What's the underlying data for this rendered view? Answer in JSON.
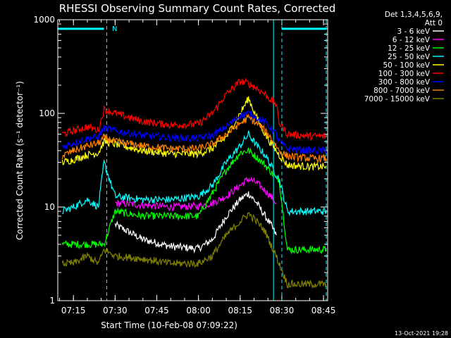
{
  "chart_data": {
    "type": "line",
    "title": "RHESSI Observing Summary Count Rates, Corrected",
    "xlabel": "Start Time (10-Feb-08 07:09:22)",
    "ylabel": "Corrected Count Rate (s⁻¹ detector⁻¹)",
    "y_scale": "log",
    "ylim": [
      1,
      1000
    ],
    "y_ticks": [
      {
        "label": "1",
        "value": 1
      },
      {
        "label": "10",
        "value": 10
      },
      {
        "label": "100",
        "value": 100
      },
      {
        "label": "1000",
        "value": 1000
      }
    ],
    "xlim": [
      "07:09:22",
      "08:46:30"
    ],
    "x_ticks": [
      {
        "label": "07:15",
        "value": "07:15"
      },
      {
        "label": "07:30",
        "value": "07:30"
      },
      {
        "label": "07:45",
        "value": "07:45"
      },
      {
        "label": "08:00",
        "value": "08:00"
      },
      {
        "label": "08:15",
        "value": "08:15"
      },
      {
        "label": "08:30",
        "value": "08:30"
      },
      {
        "label": "08:45",
        "value": "08:45"
      }
    ],
    "legend_header": [
      "Det 1,3,4,5,6,9,",
      "Att 0"
    ],
    "legend_position": "right",
    "annotation": {
      "label": "N",
      "time": "07:27"
    },
    "timestamp": "13-Oct-2021 19:28",
    "night_markers": [
      {
        "time": "07:27",
        "color": "#00ffff",
        "style": "dashed"
      },
      {
        "time": "08:27",
        "color": "#00ffff",
        "style": "solid"
      },
      {
        "time": "08:30",
        "color": "#00ffff",
        "style": "dashed"
      },
      {
        "time": "08:46",
        "color": "#00ffff",
        "style": "dashed"
      }
    ],
    "flag_bars": [
      {
        "start": "07:09:22",
        "end": "07:26",
        "value": 800,
        "color": "#00ffff"
      },
      {
        "start": "08:30",
        "end": "08:46",
        "value": 800,
        "color": "#00ffff"
      }
    ],
    "x": [
      "07:11",
      "07:15",
      "07:20",
      "07:24",
      "07:26",
      "07:30",
      "07:40",
      "07:50",
      "08:00",
      "08:05",
      "08:10",
      "08:15",
      "08:18",
      "08:21",
      "08:24",
      "08:26",
      "08:28",
      "08:29",
      "08:32",
      "08:40",
      "08:46"
    ],
    "series": [
      {
        "name": "3 - 6 keV",
        "color": "#ffffff",
        "values": [
          null,
          null,
          null,
          null,
          null,
          6.5,
          4.5,
          3.8,
          3.6,
          4.5,
          8,
          12,
          14,
          11,
          8,
          6.5,
          5,
          null,
          null,
          null,
          null
        ]
      },
      {
        "name": "6 - 12 keV",
        "color": "#ff00ff",
        "values": [
          null,
          null,
          null,
          null,
          null,
          11,
          10.5,
          10,
          10.2,
          11,
          13,
          17,
          20,
          18,
          15,
          13,
          11,
          null,
          null,
          null,
          null
        ]
      },
      {
        "name": "12 - 25 keV",
        "color": "#00ff00",
        "values": [
          4,
          4,
          4,
          4,
          4,
          9,
          8,
          8,
          8,
          14,
          25,
          38,
          40,
          34,
          28,
          24,
          20,
          20,
          3.5,
          3.5,
          3.5
        ]
      },
      {
        "name": "25 - 50 keV",
        "color": "#00ffff",
        "values": [
          9,
          10,
          12,
          10,
          30,
          13,
          12,
          12,
          13,
          17,
          30,
          45,
          60,
          45,
          36,
          28,
          22,
          20,
          9,
          9,
          9
        ]
      },
      {
        "name": "50 - 100 keV",
        "color": "#ffff00",
        "values": [
          30,
          32,
          36,
          38,
          50,
          47,
          40,
          37,
          37,
          42,
          56,
          100,
          145,
          90,
          60,
          48,
          40,
          36,
          28,
          27,
          27
        ]
      },
      {
        "name": "100 - 300 keV",
        "color": "#ff0000",
        "values": [
          60,
          65,
          72,
          66,
          110,
          100,
          82,
          75,
          77,
          100,
          160,
          220,
          210,
          185,
          160,
          140,
          125,
          80,
          60,
          57,
          57
        ]
      },
      {
        "name": "300 - 800 keV",
        "color": "#0000ff",
        "values": [
          44,
          48,
          54,
          56,
          70,
          65,
          58,
          55,
          54,
          58,
          72,
          95,
          100,
          90,
          80,
          70,
          60,
          50,
          42,
          40,
          40
        ]
      },
      {
        "name": "800 - 7000 keV",
        "color": "#ff8000",
        "values": [
          35,
          40,
          45,
          48,
          55,
          50,
          45,
          42,
          42,
          47,
          60,
          78,
          90,
          78,
          65,
          55,
          45,
          40,
          35,
          33,
          33
        ]
      },
      {
        "name": "7000 - 15000 keV",
        "color": "#808000",
        "values": [
          2.5,
          2.5,
          3,
          2.5,
          3.5,
          3,
          2.8,
          2.5,
          2.5,
          3,
          5,
          7,
          8.5,
          7,
          5.5,
          4,
          3,
          2.5,
          1.5,
          1.5,
          1.5
        ]
      }
    ]
  }
}
